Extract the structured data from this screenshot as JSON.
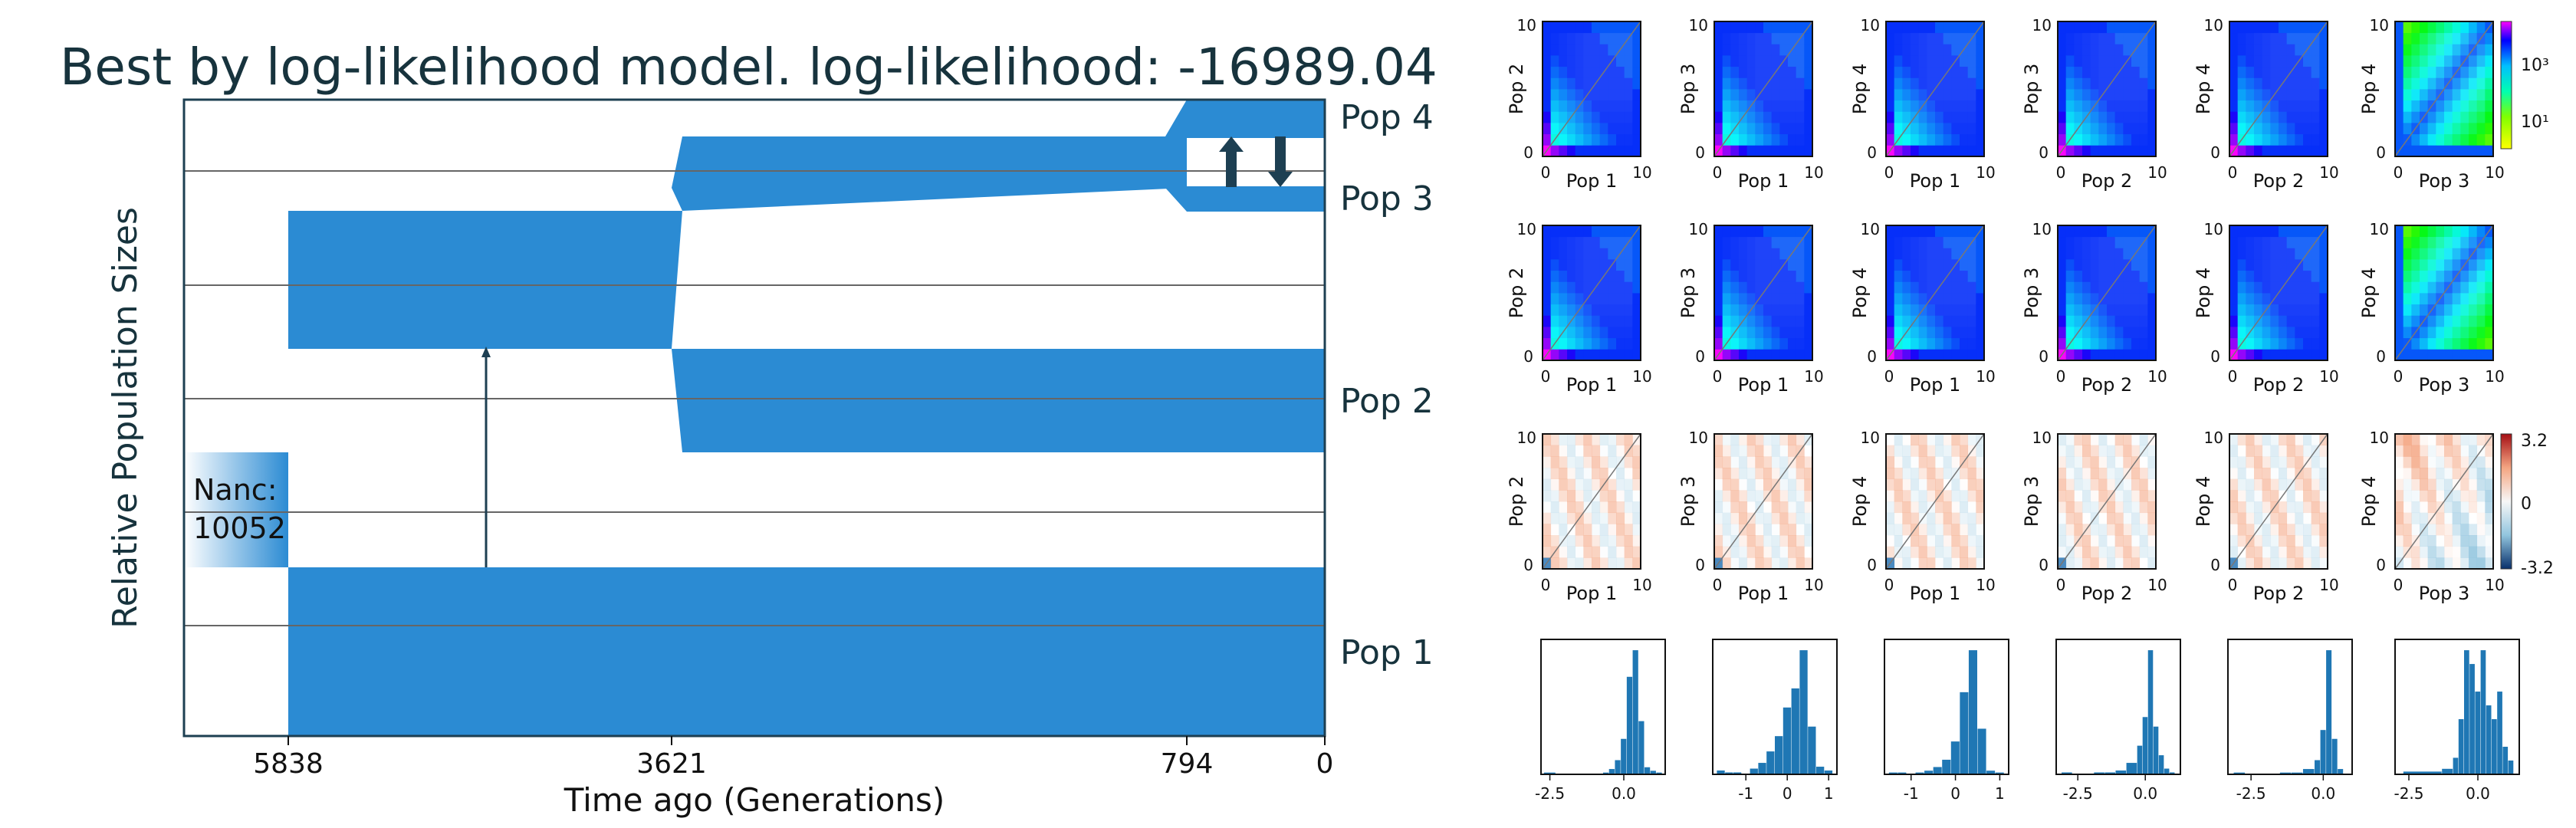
{
  "colors": {
    "population_fill": "#2b8bd3",
    "frame": "#1d3f52",
    "gridline": "#666666",
    "arrow": "#1d3f52",
    "hist_bar": "#1f77b4"
  },
  "chart_data": [
    {
      "type": "area",
      "title": "Best by log-likelihood model. log-likelihood: -16989.04",
      "xlabel": "Time ago (Generations)",
      "ylabel": "Relative Population Sizes",
      "x_ticks": [
        "5838",
        "3621",
        "794",
        "0"
      ],
      "times": [
        5838,
        3621,
        794,
        0
      ],
      "ancestral": {
        "label": "Nanc:",
        "value": "10052"
      },
      "populations": [
        {
          "name": "Pop 1"
        },
        {
          "name": "Pop 2"
        },
        {
          "name": "Pop 3"
        },
        {
          "name": "Pop 4"
        }
      ],
      "events": [
        {
          "time": 5838,
          "event": "split of ancestral population into Pop 1 and Pop 2/3/4 lineage"
        },
        {
          "time": 3621,
          "event": "split into Pop 2 and Pop 3/4 lineage"
        },
        {
          "time": 794,
          "event": "split into Pop 3 and Pop 4 with migration between them"
        }
      ],
      "migration": [
        {
          "from": "Pop 1",
          "to": "Pop 2/3/4 lineage",
          "interval": [
            5838,
            3621
          ]
        },
        {
          "between": [
            "Pop 3",
            "Pop 4"
          ],
          "interval": [
            794,
            0
          ]
        }
      ]
    },
    {
      "type": "heatmap",
      "title": "",
      "rows": [
        {
          "panels": [
            {
              "xlabel": "Pop 1",
              "ylabel": "Pop 2",
              "xticks": [
                "0",
                "10"
              ],
              "yticks": [
                "0",
                "10"
              ]
            },
            {
              "xlabel": "Pop 1",
              "ylabel": "Pop 3",
              "xticks": [
                "0",
                "10"
              ],
              "yticks": [
                "0",
                "10"
              ]
            },
            {
              "xlabel": "Pop 1",
              "ylabel": "Pop 4",
              "xticks": [
                "0",
                "10"
              ],
              "yticks": [
                "0",
                "10"
              ]
            },
            {
              "xlabel": "Pop 2",
              "ylabel": "Pop 3",
              "xticks": [
                "0",
                "10"
              ],
              "yticks": [
                "0",
                "10"
              ]
            },
            {
              "xlabel": "Pop 2",
              "ylabel": "Pop 4",
              "xticks": [
                "0",
                "10"
              ],
              "yticks": [
                "0",
                "10"
              ]
            },
            {
              "xlabel": "Pop 3",
              "ylabel": "Pop 4",
              "xticks": [
                "0",
                "10"
              ],
              "yticks": [
                "0",
                "10"
              ]
            }
          ],
          "colorbar": [
            "10³",
            "10¹"
          ]
        },
        {
          "panels": [
            {
              "xlabel": "Pop 1",
              "ylabel": "Pop 2",
              "xticks": [
                "0",
                "10"
              ],
              "yticks": [
                "0",
                "10"
              ]
            },
            {
              "xlabel": "Pop 1",
              "ylabel": "Pop 3",
              "xticks": [
                "0",
                "10"
              ],
              "yticks": [
                "0",
                "10"
              ]
            },
            {
              "xlabel": "Pop 1",
              "ylabel": "Pop 4",
              "xticks": [
                "0",
                "10"
              ],
              "yticks": [
                "0",
                "10"
              ]
            },
            {
              "xlabel": "Pop 2",
              "ylabel": "Pop 3",
              "xticks": [
                "0",
                "10"
              ],
              "yticks": [
                "0",
                "10"
              ]
            },
            {
              "xlabel": "Pop 2",
              "ylabel": "Pop 4",
              "xticks": [
                "0",
                "10"
              ],
              "yticks": [
                "0",
                "10"
              ]
            },
            {
              "xlabel": "Pop 3",
              "ylabel": "Pop 4",
              "xticks": [
                "0",
                "10"
              ],
              "yticks": [
                "0",
                "10"
              ]
            }
          ]
        },
        {
          "panels": [
            {
              "xlabel": "Pop 1",
              "ylabel": "Pop 2",
              "xticks": [
                "0",
                "10"
              ],
              "yticks": [
                "0",
                "10"
              ]
            },
            {
              "xlabel": "Pop 1",
              "ylabel": "Pop 3",
              "xticks": [
                "0",
                "10"
              ],
              "yticks": [
                "0",
                "10"
              ]
            },
            {
              "xlabel": "Pop 1",
              "ylabel": "Pop 4",
              "xticks": [
                "0",
                "10"
              ],
              "yticks": [
                "0",
                "10"
              ]
            },
            {
              "xlabel": "Pop 2",
              "ylabel": "Pop 3",
              "xticks": [
                "0",
                "10"
              ],
              "yticks": [
                "0",
                "10"
              ]
            },
            {
              "xlabel": "Pop 2",
              "ylabel": "Pop 4",
              "xticks": [
                "0",
                "10"
              ],
              "yticks": [
                "0",
                "10"
              ]
            },
            {
              "xlabel": "Pop 3",
              "ylabel": "Pop 4",
              "xticks": [
                "0",
                "10"
              ],
              "yticks": [
                "0",
                "10"
              ]
            }
          ],
          "colorbar": [
            "3.2",
            "0",
            "-3.2"
          ]
        }
      ]
    },
    {
      "type": "bar",
      "title": "",
      "histograms": [
        {
          "ticks": [
            "-2.5",
            "0.0"
          ],
          "tick_values": [
            -2.5,
            0.0
          ],
          "xlim": [
            -2.8,
            1.4
          ],
          "bins": [
            -2.7,
            -2.3,
            -1.9,
            -1.5,
            -1.1,
            -0.7,
            -0.5,
            -0.3,
            -0.1,
            0.1,
            0.3,
            0.5,
            0.7,
            0.9,
            1.1
          ],
          "counts": [
            1,
            0,
            0,
            0,
            0,
            1,
            3,
            8,
            20,
            55,
            70,
            30,
            4,
            2,
            1
          ]
        },
        {
          "ticks": [
            "-1",
            "0",
            "1"
          ],
          "tick_values": [
            -1,
            0,
            1
          ],
          "xlim": [
            -1.8,
            1.2
          ],
          "bins": [
            -1.7,
            -1.5,
            -1.3,
            -1.1,
            -0.9,
            -0.7,
            -0.5,
            -0.3,
            -0.1,
            0.1,
            0.3,
            0.5,
            0.7,
            0.9
          ],
          "counts": [
            2,
            1,
            1,
            0,
            3,
            6,
            12,
            20,
            35,
            45,
            65,
            25,
            4,
            2
          ]
        },
        {
          "ticks": [
            "-1",
            "0",
            "1"
          ],
          "tick_values": [
            -1,
            0,
            1
          ],
          "xlim": [
            -1.6,
            1.2
          ],
          "bins": [
            -1.5,
            -1.3,
            -1.1,
            -0.9,
            -0.7,
            -0.5,
            -0.3,
            -0.1,
            0.1,
            0.3,
            0.5,
            0.7,
            0.9
          ],
          "counts": [
            1,
            1,
            0,
            1,
            2,
            4,
            8,
            18,
            45,
            68,
            25,
            2,
            1
          ]
        },
        {
          "ticks": [
            "-2.5",
            "0.0"
          ],
          "tick_values": [
            -2.5,
            0.0
          ],
          "xlim": [
            -3.3,
            1.3
          ],
          "bins": [
            -3.1,
            -2.7,
            -2.3,
            -1.9,
            -1.5,
            -1.1,
            -0.7,
            -0.3,
            -0.1,
            0.1,
            0.3,
            0.5,
            0.7,
            0.9
          ],
          "counts": [
            1,
            0,
            0,
            1,
            1,
            2,
            6,
            15,
            30,
            65,
            25,
            10,
            3,
            1
          ]
        },
        {
          "ticks": [
            "-2.5",
            "0.0"
          ],
          "tick_values": [
            -2.5,
            0.0
          ],
          "xlim": [
            -3.3,
            1.0
          ],
          "bins": [
            -3.1,
            -2.7,
            -2.3,
            -1.9,
            -1.5,
            -1.1,
            -0.7,
            -0.3,
            -0.1,
            0.1,
            0.3,
            0.5
          ],
          "counts": [
            1,
            0,
            0,
            0,
            1,
            1,
            3,
            8,
            25,
            70,
            20,
            3
          ]
        },
        {
          "ticks": [
            "-2.5",
            "0.0"
          ],
          "tick_values": [
            -2.5,
            0.0
          ],
          "xlim": [
            -3.0,
            1.5
          ],
          "bins": [
            -2.7,
            -1.3,
            -0.9,
            -0.7,
            -0.5,
            -0.3,
            -0.1,
            0.1,
            0.3,
            0.5,
            0.7,
            0.9,
            1.1
          ],
          "counts": [
            1,
            2,
            6,
            20,
            45,
            40,
            30,
            45,
            25,
            20,
            30,
            10,
            5
          ]
        }
      ]
    }
  ]
}
